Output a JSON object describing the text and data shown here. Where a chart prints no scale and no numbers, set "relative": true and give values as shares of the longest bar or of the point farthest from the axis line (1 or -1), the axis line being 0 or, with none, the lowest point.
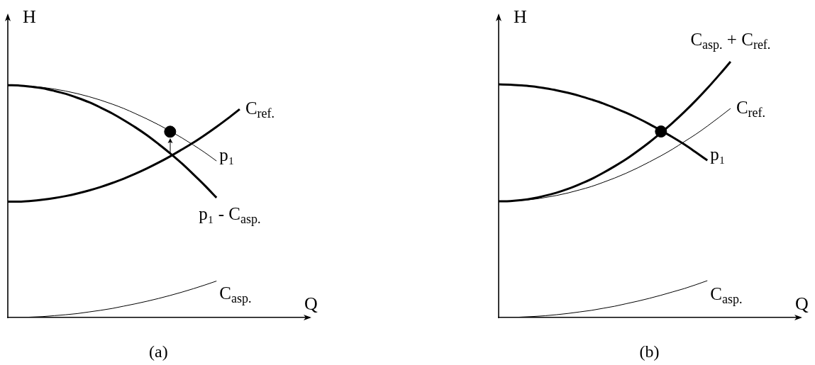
{
  "chart_data": [
    {
      "type": "line",
      "title": "(a)",
      "xlabel": "Q",
      "ylabel": "H",
      "relative": true,
      "categories": [
        null,
        null,
        null,
        null,
        null,
        null,
        null,
        null,
        null,
        null,
        null,
        null,
        null,
        null,
        null,
        null,
        null,
        null,
        null,
        null,
        null,
        null,
        null,
        null,
        null,
        null,
        null
      ],
      "series": [
        {
          "name": "p₁ - C$_{asp.}$",
          "color": "#000000",
          "values": [
            1,
            0.999,
            0.994,
            0.987,
            0.976,
            0.963,
            0.946,
            0.927,
            0.904,
            0.879,
            0.85,
            0.819,
            0.785,
            0.747,
            0.707,
            0.664,
            0.617,
            0.568,
            0.516,
            null,
            null,
            null,
            null,
            null,
            null,
            null,
            null
          ]
        },
        {
          "name": "p₁",
          "color": "#000000",
          "values": [
            1,
            0.999,
            0.996,
            0.991,
            0.984,
            0.975,
            0.964,
            0.951,
            0.936,
            0.919,
            0.9,
            0.878,
            0.855,
            0.83,
            0.803,
            0.774,
            0.743,
            0.71,
            0.674,
            null,
            null,
            null,
            null,
            null,
            null,
            null,
            null
          ]
        },
        {
          "name": "C$_{ref.}$",
          "color": "#000000",
          "values": [
            0.499,
            0.499,
            0.502,
            0.507,
            0.514,
            0.523,
            0.534,
            0.547,
            0.562,
            0.579,
            0.598,
            0.619,
            0.642,
            0.667,
            0.694,
            0.723,
            0.753,
            0.786,
            0.821,
            0.858,
            0.897,
            null,
            null,
            null,
            null,
            null,
            null
          ]
        },
        {
          "name": "C$_{asp.}$",
          "color": "#000000",
          "values": [
            0,
            0,
            0.002,
            0.004,
            0.008,
            0.012,
            0.017,
            0.024,
            0.031,
            0.039,
            0.049,
            0.059,
            0.07,
            0.082,
            0.095,
            0.109,
            0.124,
            0.14,
            0.157,
            null,
            null,
            null,
            null,
            null,
            null,
            null,
            null
          ]
        },
        {
          "marker": "circle",
          "color": "#000000",
          "values": [
            null,
            null,
            null,
            null,
            null,
            null,
            null,
            null,
            null,
            null,
            null,
            null,
            null,
            null,
            0.8,
            null,
            null,
            null,
            null,
            null,
            null,
            null,
            null,
            null,
            null,
            null,
            null
          ]
        }
      ]
    },
    {
      "type": "line",
      "title": "(b)",
      "xlabel": "Q",
      "ylabel": "H",
      "relative": true,
      "categories": [
        null,
        null,
        null,
        null,
        null,
        null,
        null,
        null,
        null,
        null,
        null,
        null,
        null,
        null,
        null,
        null,
        null,
        null,
        null,
        null,
        null,
        null,
        null,
        null,
        null,
        null,
        null
      ],
      "series": [
        {
          "name": "p₁",
          "color": "#000000",
          "values": [
            0.911,
            0.91,
            0.907,
            0.903,
            0.896,
            0.888,
            0.878,
            0.866,
            0.852,
            0.837,
            0.819,
            0.8,
            0.779,
            0.756,
            0.731,
            0.705,
            0.677,
            0.646,
            0.614,
            null,
            null,
            null,
            null,
            null,
            null,
            null,
            null
          ]
        },
        {
          "name": "C$_{asp.}$ + C$_{ref.}$",
          "color": "#000000",
          "values": [
            0.454,
            0.455,
            0.459,
            0.466,
            0.476,
            0.488,
            0.503,
            0.521,
            0.541,
            0.565,
            0.591,
            0.619,
            0.651,
            0.685,
            0.722,
            0.761,
            0.803,
            0.848,
            0.896,
            0.947,
            1,
            null,
            null,
            null,
            null,
            null,
            null
          ]
        },
        {
          "name": "C$_{ref.}$",
          "color": "#000000",
          "values": [
            0.454,
            0.455,
            0.458,
            0.462,
            0.469,
            0.477,
            0.487,
            0.499,
            0.512,
            0.528,
            0.545,
            0.564,
            0.585,
            0.608,
            0.632,
            0.658,
            0.687,
            0.716,
            0.748,
            0.782,
            0.817,
            null,
            null,
            null,
            null,
            null,
            null
          ]
        },
        {
          "name": "C$_{asp.}$",
          "color": "#000000",
          "values": [
            0,
            0,
            0.002,
            0.004,
            0.007,
            0.011,
            0.016,
            0.022,
            0.028,
            0.036,
            0.044,
            0.054,
            0.064,
            0.075,
            0.087,
            0.1,
            0.113,
            0.128,
            0.144,
            null,
            null,
            null,
            null,
            null,
            null,
            null,
            null
          ]
        },
        {
          "marker": "circle",
          "color": "#000000",
          "values": [
            null,
            null,
            null,
            null,
            null,
            null,
            null,
            null,
            null,
            null,
            null,
            null,
            null,
            null,
            0.727,
            null,
            null,
            null,
            null,
            null,
            null,
            null,
            null,
            null,
            null,
            null,
            null
          ]
        }
      ]
    }
  ]
}
